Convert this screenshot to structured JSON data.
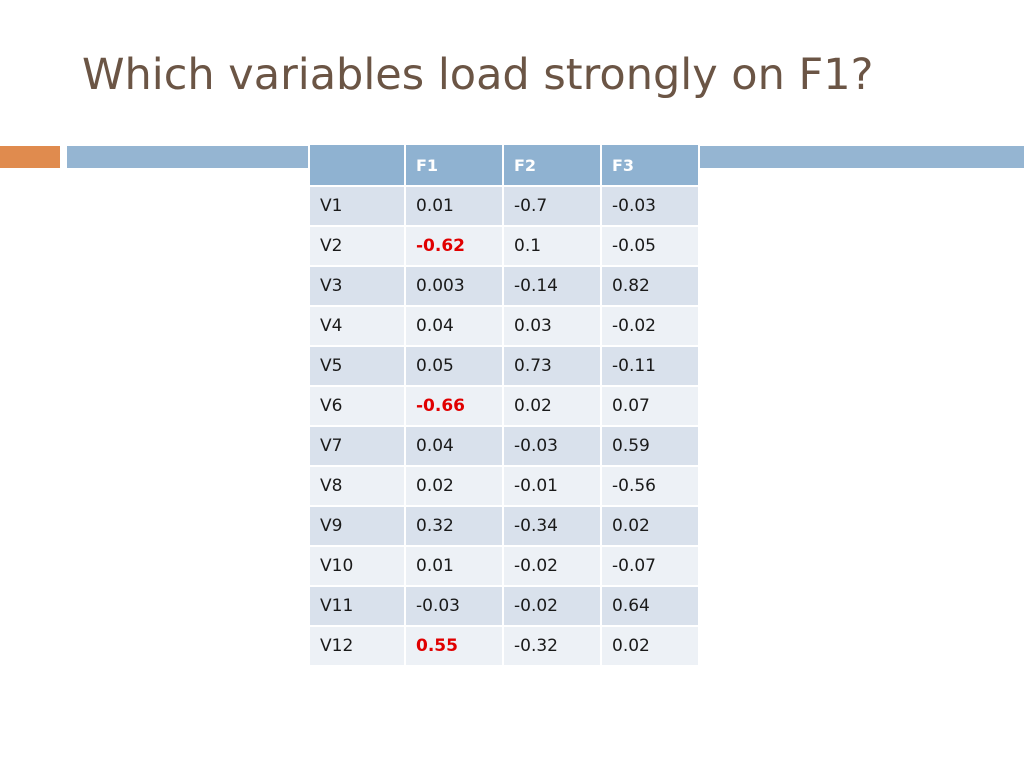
{
  "slide": {
    "title": "Which variables load strongly on F1?",
    "colors": {
      "title": "#6b5545",
      "accent_orange": "#e08b4e",
      "accent_blue": "#95b5d2",
      "header_fill": "#8fb2d1",
      "row_odd": "#d9e1ec",
      "row_even": "#edf1f6",
      "highlight": "#e00000"
    }
  },
  "table": {
    "headers": [
      "",
      "F1",
      "F2",
      "F3"
    ],
    "rows": [
      {
        "var": "V1",
        "f1": "0.01",
        "f2": "-0.7",
        "f3": "-0.03",
        "f1_strong": false
      },
      {
        "var": "V2",
        "f1": "-0.62",
        "f2": "0.1",
        "f3": "-0.05",
        "f1_strong": true
      },
      {
        "var": "V3",
        "f1": "0.003",
        "f2": "-0.14",
        "f3": "0.82",
        "f1_strong": false
      },
      {
        "var": "V4",
        "f1": "0.04",
        "f2": "0.03",
        "f3": "-0.02",
        "f1_strong": false
      },
      {
        "var": "V5",
        "f1": "0.05",
        "f2": "0.73",
        "f3": "-0.11",
        "f1_strong": false
      },
      {
        "var": "V6",
        "f1": "-0.66",
        "f2": "0.02",
        "f3": "0.07",
        "f1_strong": true
      },
      {
        "var": "V7",
        "f1": "0.04",
        "f2": "-0.03",
        "f3": "0.59",
        "f1_strong": false
      },
      {
        "var": "V8",
        "f1": "0.02",
        "f2": "-0.01",
        "f3": "-0.56",
        "f1_strong": false
      },
      {
        "var": "V9",
        "f1": "0.32",
        "f2": "-0.34",
        "f3": "0.02",
        "f1_strong": false
      },
      {
        "var": "V10",
        "f1": "0.01",
        "f2": "-0.02",
        "f3": "-0.07",
        "f1_strong": false
      },
      {
        "var": "V11",
        "f1": "-0.03",
        "f2": "-0.02",
        "f3": "0.64",
        "f1_strong": false
      },
      {
        "var": "V12",
        "f1": "0.55",
        "f2": "-0.32",
        "f3": "0.02",
        "f1_strong": true
      }
    ]
  }
}
